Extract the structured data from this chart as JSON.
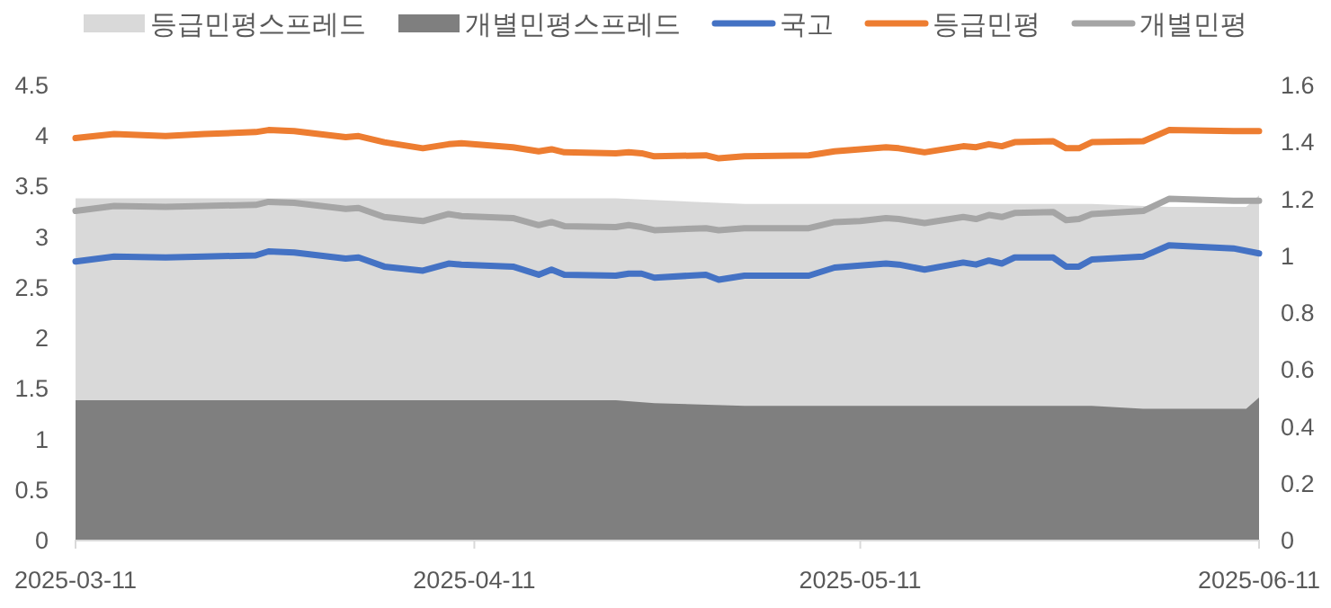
{
  "chart_data": {
    "type": "line",
    "legend": "top",
    "xlim": [
      "2025-03-11",
      "2025-06-11"
    ],
    "xticks": [
      "2025-03-11",
      "2025-04-11",
      "2025-05-11",
      "2025-06-11"
    ],
    "ylim": [
      0,
      4.5
    ],
    "yticks": [
      0,
      0.5,
      1,
      1.5,
      2,
      2.5,
      3,
      3.5,
      4,
      4.5
    ],
    "y2lim": [
      0,
      1.6
    ],
    "y2ticks": [
      0,
      0.2,
      0.4,
      0.6,
      0.8,
      1,
      1.2,
      1.4,
      1.6
    ],
    "x": [
      "2025-03-11",
      "2025-03-14",
      "2025-03-18",
      "2025-03-21",
      "2025-03-25",
      "2025-03-26",
      "2025-03-28",
      "2025-04-01",
      "2025-04-02",
      "2025-04-04",
      "2025-04-07",
      "2025-04-09",
      "2025-04-10",
      "2025-04-14",
      "2025-04-16",
      "2025-04-17",
      "2025-04-18",
      "2025-04-22",
      "2025-04-23",
      "2025-04-24",
      "2025-04-25",
      "2025-04-29",
      "2025-04-30",
      "2025-05-02",
      "2025-05-07",
      "2025-05-09",
      "2025-05-11",
      "2025-05-13",
      "2025-05-14",
      "2025-05-16",
      "2025-05-19",
      "2025-05-20",
      "2025-05-21",
      "2025-05-22",
      "2025-05-23",
      "2025-05-26",
      "2025-05-27",
      "2025-05-28",
      "2025-05-29",
      "2025-06-02",
      "2025-06-04",
      "2025-06-09",
      "2025-06-11"
    ],
    "series": [
      {
        "name": "등급민평스프레드",
        "type": "area",
        "axis": "y2",
        "color": "#d9d9d9",
        "x": [
          "2025-03-11",
          "2025-04-22",
          "2025-05-02",
          "2025-05-29",
          "2025-06-04",
          "2025-06-10",
          "2025-06-11"
        ],
        "values": [
          1.2,
          1.2,
          1.18,
          1.18,
          1.17,
          1.17,
          1.21
        ]
      },
      {
        "name": "개별민평스프레드",
        "type": "area",
        "axis": "y2",
        "color": "#7f7f7f",
        "x": [
          "2025-03-11",
          "2025-04-22",
          "2025-04-25",
          "2025-05-02",
          "2025-05-29",
          "2025-06-02",
          "2025-06-10",
          "2025-06-11"
        ],
        "values": [
          0.49,
          0.49,
          0.48,
          0.47,
          0.47,
          0.46,
          0.46,
          0.5
        ]
      },
      {
        "name": "국고",
        "color": "#4472c4",
        "values": [
          2.75,
          2.8,
          2.79,
          2.8,
          2.81,
          2.85,
          2.84,
          2.78,
          2.79,
          2.7,
          2.66,
          2.73,
          2.72,
          2.7,
          2.62,
          2.67,
          2.62,
          2.61,
          2.63,
          2.63,
          2.59,
          2.62,
          2.57,
          2.61,
          2.61,
          2.69,
          2.71,
          2.73,
          2.72,
          2.67,
          2.74,
          2.72,
          2.76,
          2.73,
          2.79,
          2.79,
          2.7,
          2.7,
          2.77,
          2.8,
          2.91,
          2.88,
          2.83
        ]
      },
      {
        "name": "등급민평",
        "color": "#ed7d31",
        "values": [
          3.97,
          4.01,
          3.99,
          4.01,
          4.03,
          4.05,
          4.04,
          3.98,
          3.99,
          3.93,
          3.87,
          3.91,
          3.92,
          3.88,
          3.84,
          3.86,
          3.83,
          3.82,
          3.83,
          3.82,
          3.79,
          3.8,
          3.77,
          3.79,
          3.8,
          3.84,
          3.86,
          3.88,
          3.87,
          3.83,
          3.89,
          3.88,
          3.91,
          3.89,
          3.93,
          3.94,
          3.87,
          3.87,
          3.93,
          3.94,
          4.05,
          4.04,
          4.04
        ]
      },
      {
        "name": "개별민평",
        "color": "#a5a5a5",
        "values": [
          3.25,
          3.3,
          3.29,
          3.3,
          3.31,
          3.34,
          3.33,
          3.27,
          3.28,
          3.19,
          3.15,
          3.22,
          3.2,
          3.18,
          3.11,
          3.14,
          3.1,
          3.09,
          3.11,
          3.09,
          3.06,
          3.08,
          3.06,
          3.08,
          3.08,
          3.14,
          3.15,
          3.18,
          3.17,
          3.13,
          3.19,
          3.17,
          3.21,
          3.19,
          3.23,
          3.24,
          3.16,
          3.17,
          3.22,
          3.25,
          3.37,
          3.35,
          3.35
        ]
      }
    ]
  }
}
